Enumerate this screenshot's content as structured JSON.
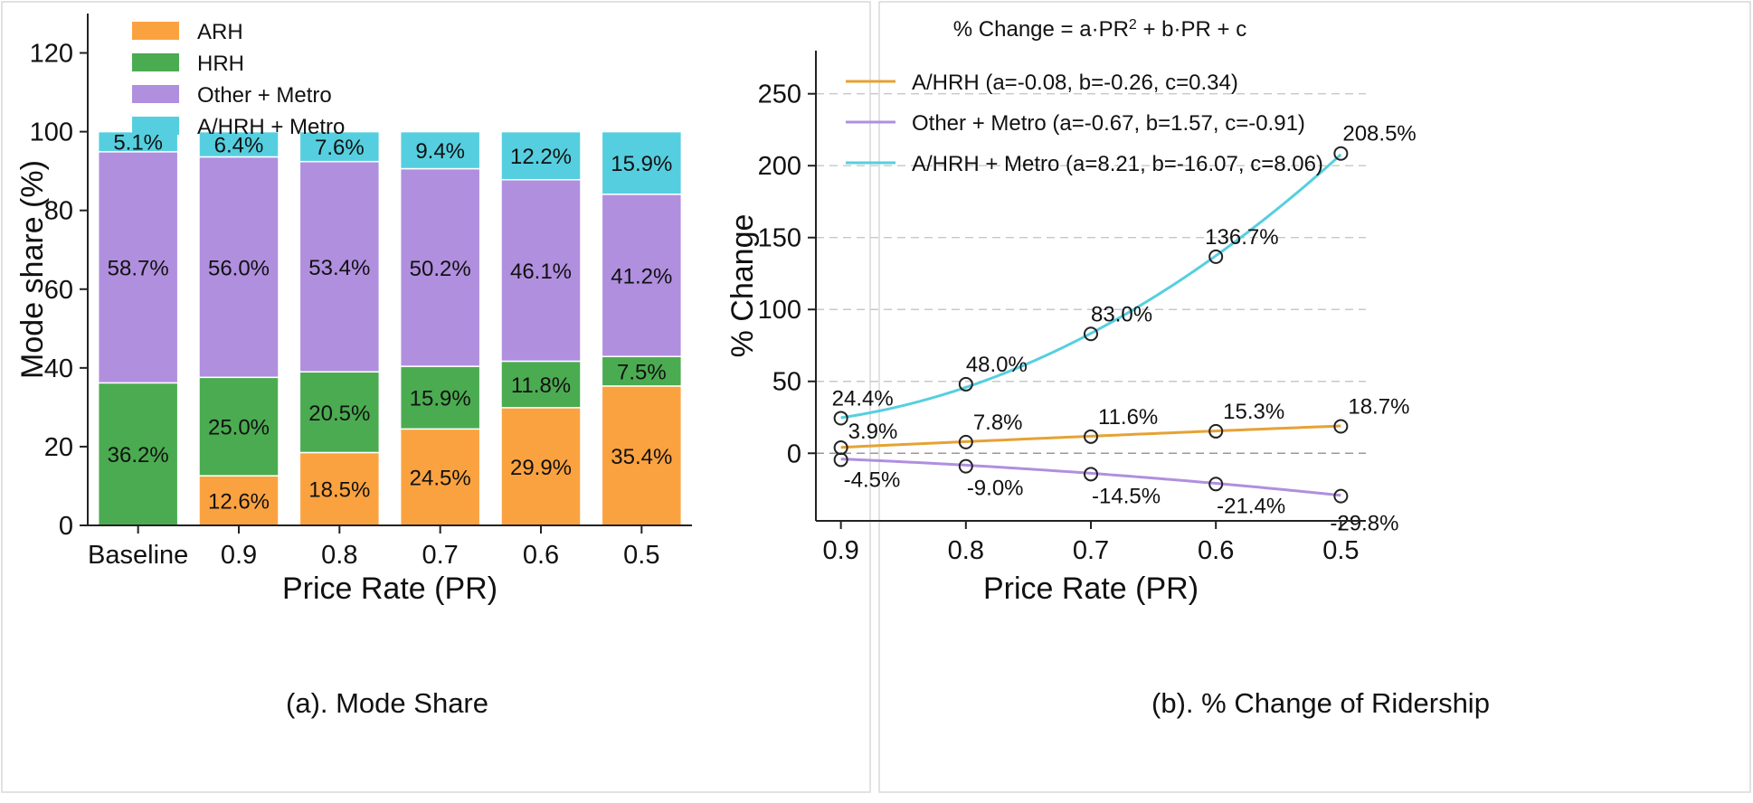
{
  "colors": {
    "ARH": "#fba240",
    "HRH": "#4bab51",
    "Other + Metro": "#b08fdf",
    "A/HRH + Metro": "#55cfdf",
    "A/HRH": "#e6a233"
  },
  "chart_data": [
    {
      "type": "bar",
      "stacked": true,
      "caption": "(a). Mode Share",
      "xlabel": "Price Rate (PR)",
      "ylabel": "Mode share (%)",
      "ylim": [
        0,
        130
      ],
      "yticks": [
        0,
        20,
        40,
        60,
        80,
        100,
        120
      ],
      "categories": [
        "Baseline",
        "0.9",
        "0.8",
        "0.7",
        "0.6",
        "0.5"
      ],
      "legend_position": "top-left",
      "series": [
        {
          "name": "ARH",
          "values": [
            0,
            12.6,
            18.5,
            24.5,
            29.9,
            35.4
          ],
          "labels": [
            "",
            "12.6%",
            "18.5%",
            "24.5%",
            "29.9%",
            "35.4%"
          ]
        },
        {
          "name": "HRH",
          "values": [
            36.2,
            25.0,
            20.5,
            15.9,
            11.8,
            7.5
          ],
          "labels": [
            "36.2%",
            "25.0%",
            "20.5%",
            "15.9%",
            "11.8%",
            "7.5%"
          ]
        },
        {
          "name": "Other + Metro",
          "values": [
            58.7,
            56.0,
            53.4,
            50.2,
            46.1,
            41.2
          ],
          "labels": [
            "58.7%",
            "56.0%",
            "53.4%",
            "50.2%",
            "46.1%",
            "41.2%"
          ]
        },
        {
          "name": "A/HRH + Metro",
          "values": [
            5.1,
            6.4,
            7.6,
            9.4,
            12.2,
            15.9
          ],
          "labels": [
            "5.1%",
            "6.4%",
            "7.6%",
            "9.4%",
            "12.2%",
            "15.9%"
          ]
        }
      ]
    },
    {
      "type": "line",
      "caption": "(b). % Change of Ridership",
      "title": "% Change = a·PR² + b·PR + c",
      "xlabel": "Price Rate (PR)",
      "ylabel": "% Change",
      "x": [
        0.9,
        0.8,
        0.7,
        0.6,
        0.5
      ],
      "xtick_labels": [
        "0.9",
        "0.8",
        "0.7",
        "0.6",
        "0.5"
      ],
      "xlim": [
        0.92,
        0.48
      ],
      "ylim": [
        -47,
        280
      ],
      "yticks": [
        0,
        50,
        100,
        150,
        200,
        250
      ],
      "grid": "horizontal dashed",
      "legend_position": "top-left",
      "series": [
        {
          "name": "A/HRH (a=-0.08, b=-0.26, c=0.34)",
          "color_key": "A/HRH",
          "a": -0.08,
          "b": -0.26,
          "c": 0.34,
          "values": [
            3.9,
            7.8,
            11.6,
            15.3,
            18.7
          ],
          "labels": [
            "3.9%",
            "7.8%",
            "11.6%",
            "15.3%",
            "18.7%"
          ]
        },
        {
          "name": "Other + Metro (a=-0.67, b=1.57, c=-0.91)",
          "color_key": "Other + Metro",
          "a": -0.67,
          "b": 1.57,
          "c": -0.91,
          "values": [
            -4.5,
            -9.0,
            -14.5,
            -21.4,
            -29.8
          ],
          "labels": [
            "-4.5%",
            "-9.0%",
            "-14.5%",
            "-21.4%",
            "-29.8%"
          ]
        },
        {
          "name": "A/HRH + Metro (a=8.21, b=-16.07, c=8.06)",
          "color_key": "A/HRH + Metro",
          "a": 8.21,
          "b": -16.07,
          "c": 8.06,
          "values": [
            24.4,
            48.0,
            83.0,
            136.7,
            208.5
          ],
          "labels": [
            "24.4%",
            "48.0%",
            "83.0%",
            "136.7%",
            "208.5%"
          ]
        }
      ]
    }
  ]
}
